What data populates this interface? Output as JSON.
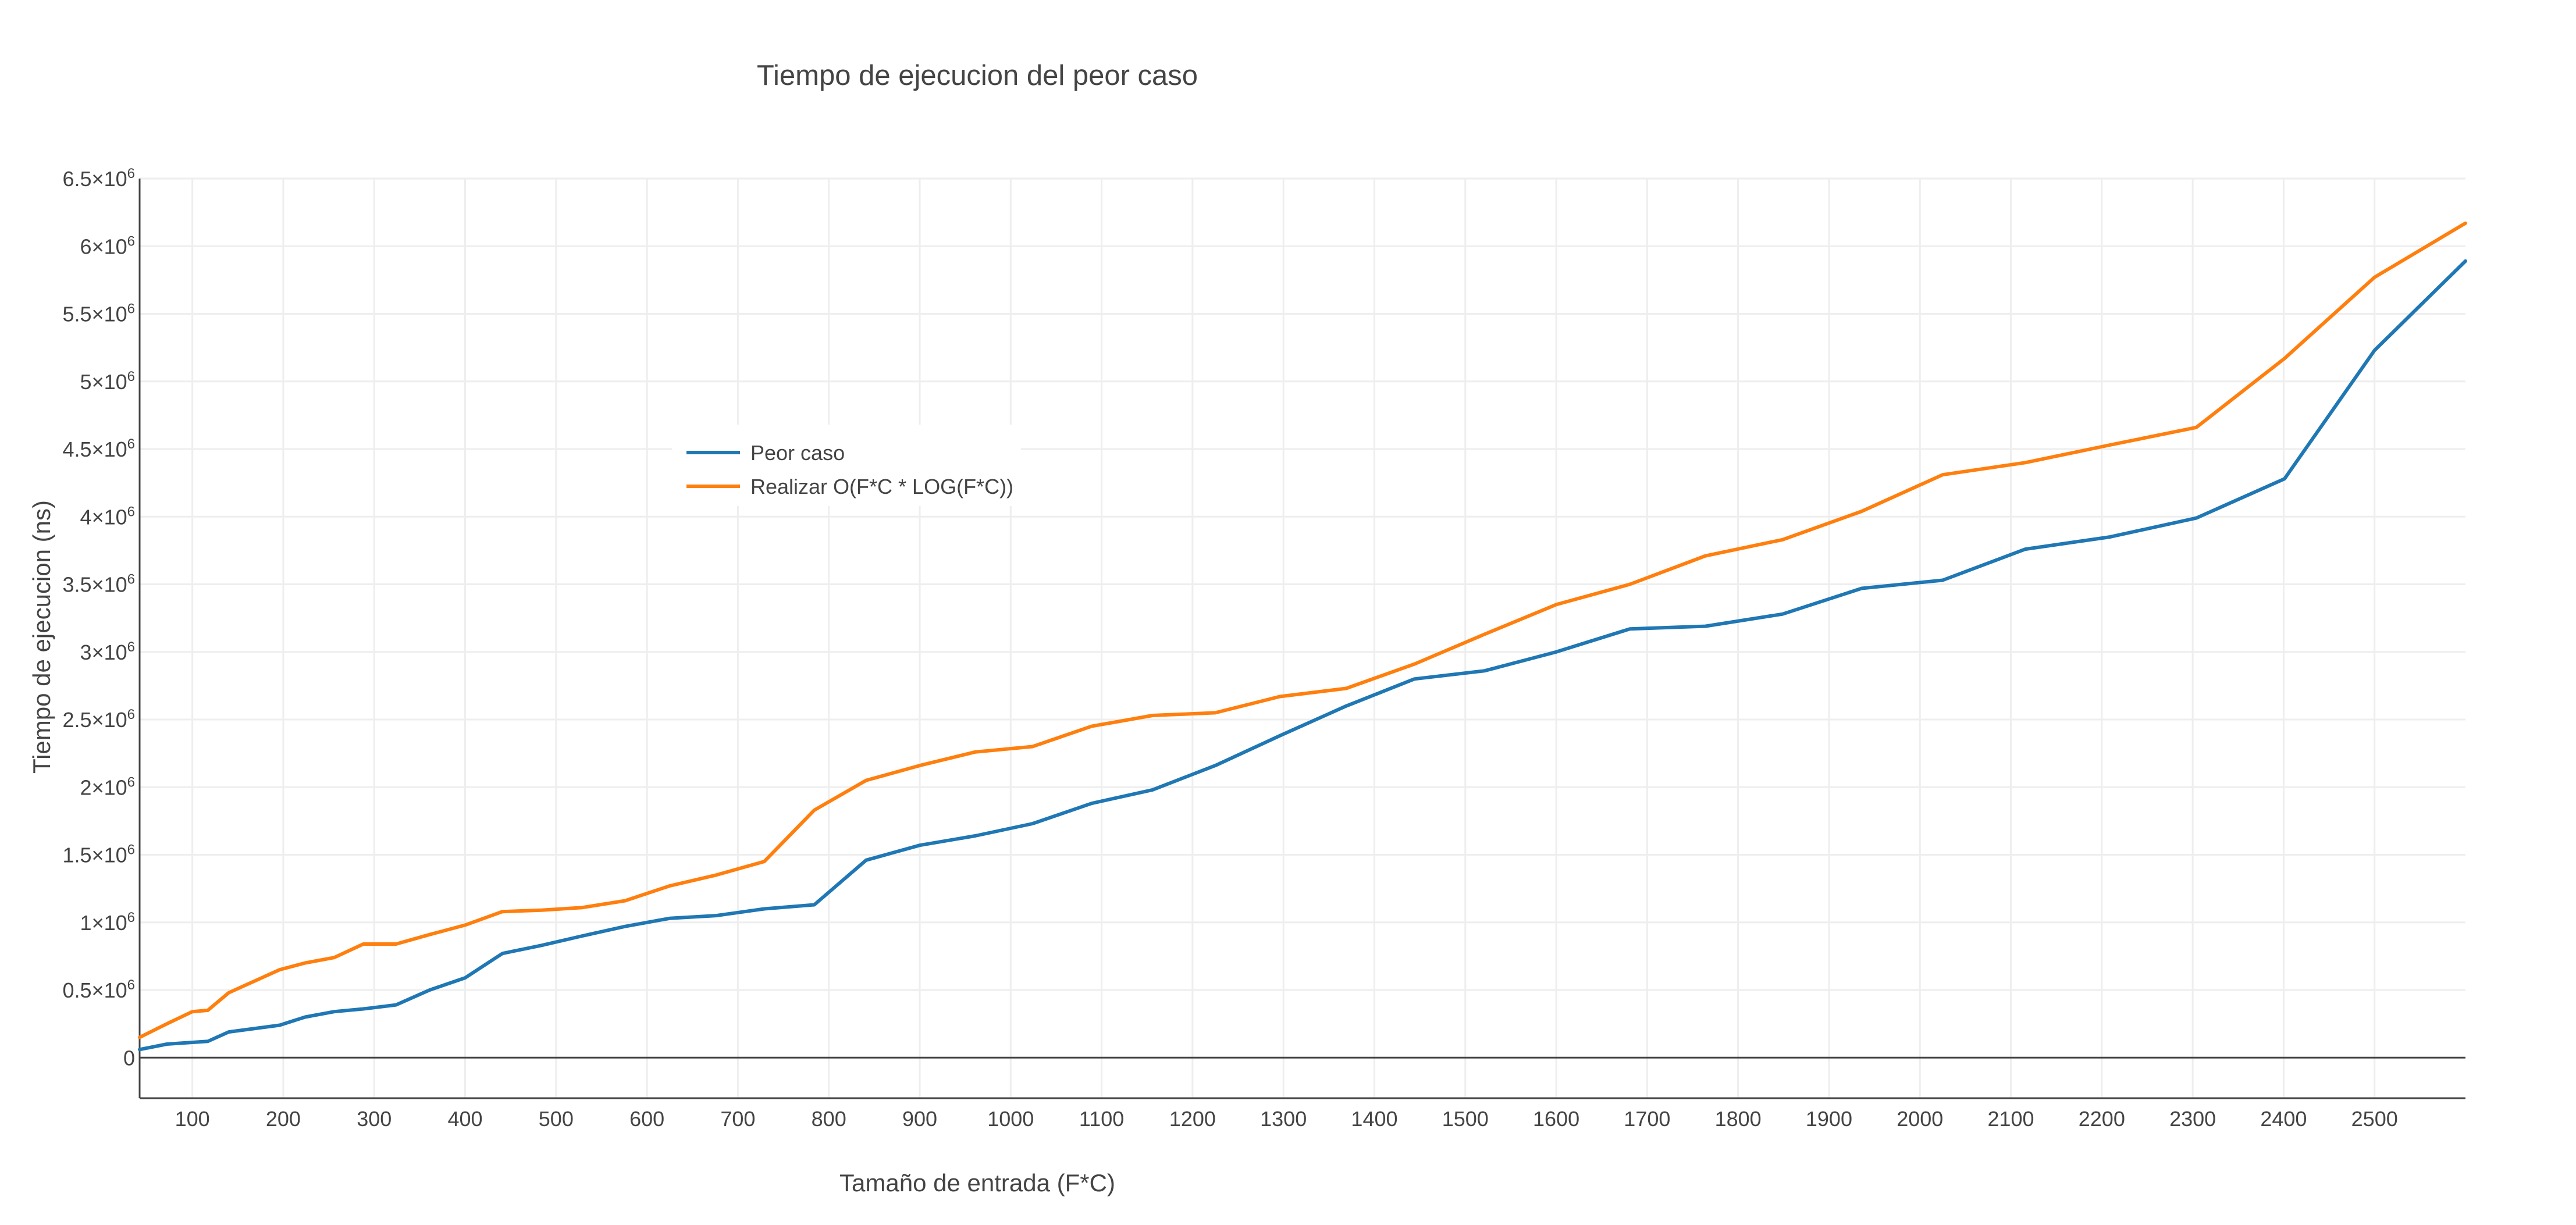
{
  "chart_data": {
    "type": "line",
    "title": "Tiempo de ejecucion del peor caso",
    "xlabel": "Tamaño de entrada (F*C)",
    "ylabel": "Tiempo de ejecucion (ns)",
    "xlim": [
      42,
      2600
    ],
    "ylim": [
      -300000,
      6500000
    ],
    "grid": true,
    "legend_position": "upper-left-center",
    "x_ticks": [
      100,
      200,
      300,
      400,
      500,
      600,
      700,
      800,
      900,
      1000,
      1100,
      1200,
      1300,
      1400,
      1500,
      1600,
      1700,
      1800,
      1900,
      2000,
      2100,
      2200,
      2300,
      2400,
      2500
    ],
    "y_ticks": [
      {
        "value": 0,
        "mantissa": "0",
        "exp": ""
      },
      {
        "value": 500000,
        "mantissa": "0.5×10",
        "exp": "6"
      },
      {
        "value": 1000000,
        "mantissa": "1×10",
        "exp": "6"
      },
      {
        "value": 1500000,
        "mantissa": "1.5×10",
        "exp": "6"
      },
      {
        "value": 2000000,
        "mantissa": "2×10",
        "exp": "6"
      },
      {
        "value": 2500000,
        "mantissa": "2.5×10",
        "exp": "6"
      },
      {
        "value": 3000000,
        "mantissa": "3×10",
        "exp": "6"
      },
      {
        "value": 3500000,
        "mantissa": "3.5×10",
        "exp": "6"
      },
      {
        "value": 4000000,
        "mantissa": "4×10",
        "exp": "6"
      },
      {
        "value": 4500000,
        "mantissa": "4.5×10",
        "exp": "6"
      },
      {
        "value": 5000000,
        "mantissa": "5×10",
        "exp": "6"
      },
      {
        "value": 5500000,
        "mantissa": "5.5×10",
        "exp": "6"
      },
      {
        "value": 6000000,
        "mantissa": "6×10",
        "exp": "6"
      },
      {
        "value": 6500000,
        "mantissa": "6.5×10",
        "exp": "6"
      }
    ],
    "series": [
      {
        "name": "Peor caso",
        "color": "#1f77b4",
        "x": [
          42,
          72,
          117,
          140,
          196,
          224,
          256,
          288,
          324,
          361,
          400,
          441,
          484,
          529,
          576,
          625,
          676,
          729,
          784,
          841,
          900,
          961,
          1024,
          1089,
          1156,
          1225,
          1296,
          1369,
          1444,
          1521,
          1600,
          1681,
          1764,
          1849,
          1936,
          2025,
          2116,
          2209,
          2304,
          2401,
          2500,
          2600
        ],
        "y": [
          60000,
          100000,
          120000,
          190000,
          240000,
          300000,
          340000,
          360000,
          390000,
          500000,
          590000,
          770000,
          830000,
          900000,
          970000,
          1030000,
          1050000,
          1100000,
          1130000,
          1460000,
          1570000,
          1640000,
          1730000,
          1880000,
          1980000,
          2160000,
          2380000,
          2600000,
          2800000,
          2860000,
          3000000,
          3170000,
          3190000,
          3280000,
          3470000,
          3530000,
          3760000,
          3850000,
          3990000,
          4280000,
          5230000,
          5890000
        ]
      },
      {
        "name": "Realizar O(F*C * LOG(F*C))",
        "color": "#ff7f0e",
        "x": [
          42,
          72,
          100,
          117,
          140,
          196,
          224,
          256,
          288,
          324,
          361,
          400,
          441,
          484,
          529,
          576,
          625,
          676,
          729,
          784,
          841,
          900,
          961,
          1024,
          1089,
          1156,
          1225,
          1296,
          1369,
          1444,
          1521,
          1600,
          1681,
          1764,
          1849,
          1936,
          2025,
          2116,
          2209,
          2304,
          2401,
          2500,
          2600
        ],
        "y": [
          150000,
          250000,
          340000,
          350000,
          480000,
          650000,
          700000,
          740000,
          840000,
          840000,
          910000,
          980000,
          1080000,
          1090000,
          1110000,
          1160000,
          1270000,
          1350000,
          1450000,
          1830000,
          2050000,
          2160000,
          2260000,
          2300000,
          2450000,
          2530000,
          2550000,
          2670000,
          2730000,
          2910000,
          3130000,
          3350000,
          3500000,
          3710000,
          3830000,
          4040000,
          4310000,
          4400000,
          4530000,
          4660000,
          5170000,
          5770000,
          6170000
        ]
      }
    ]
  }
}
